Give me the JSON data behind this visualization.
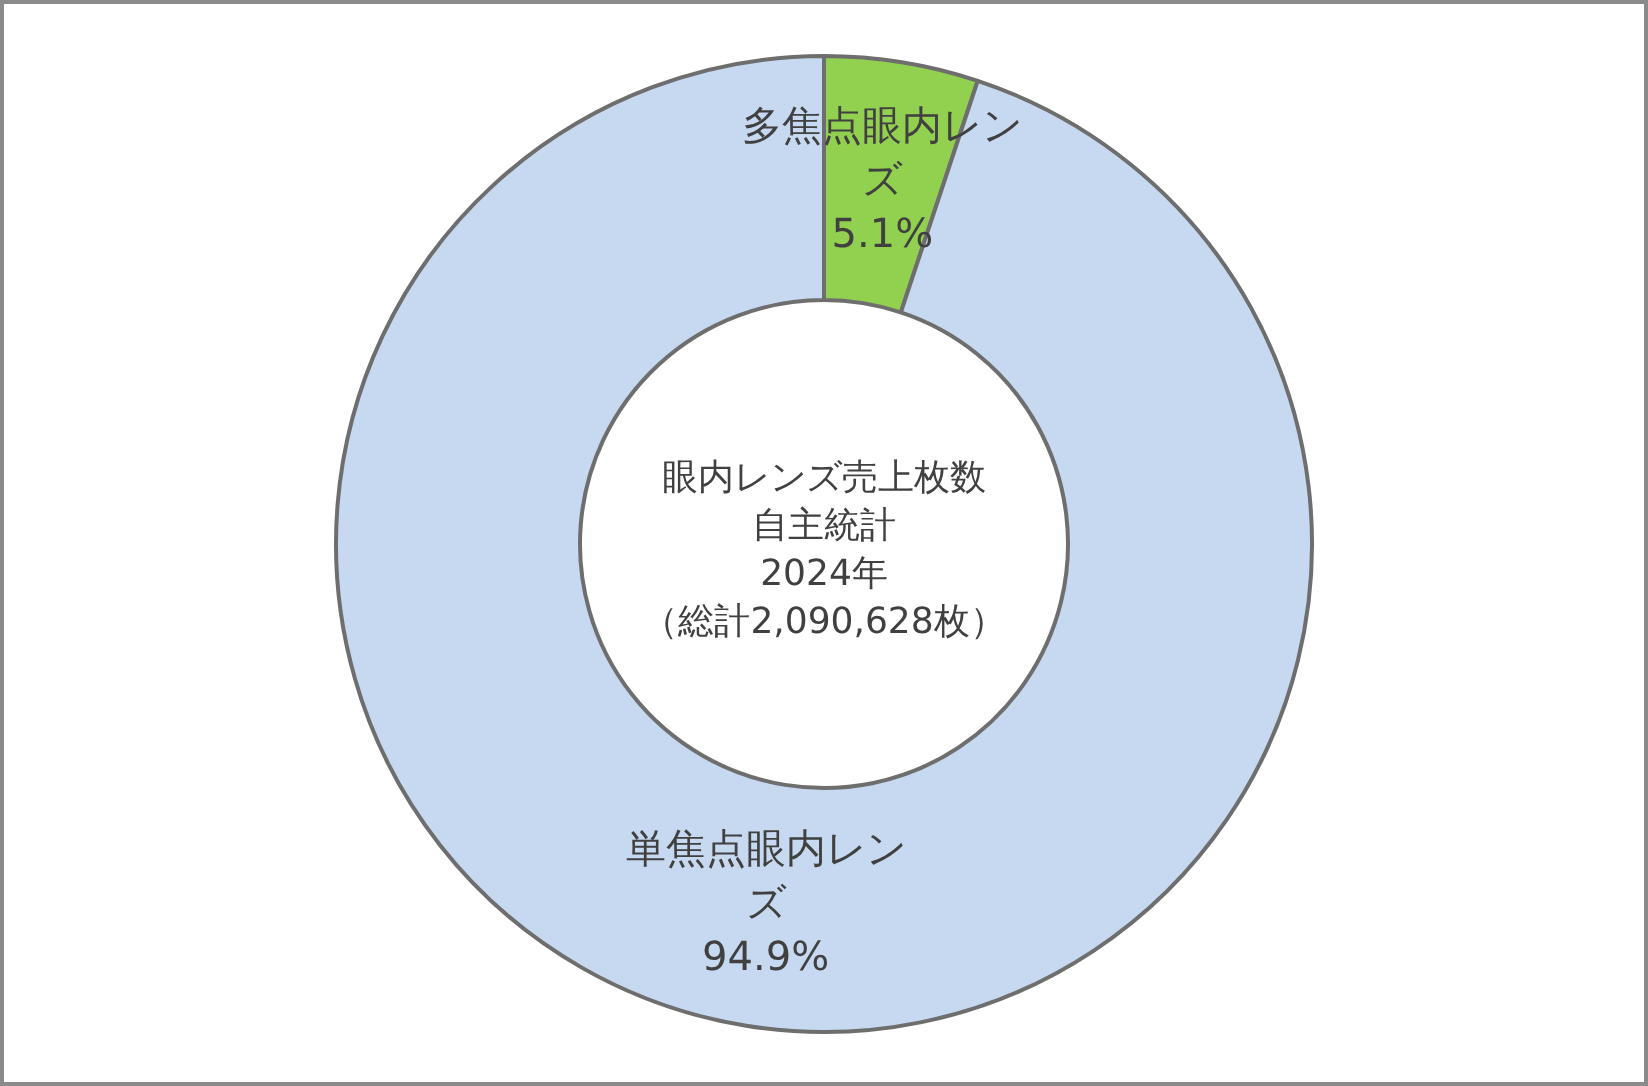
{
  "chart_data": {
    "type": "donut",
    "title": "眼内レンズ売上枚数自主統計",
    "subtitle": "2024年",
    "annotations": [
      "（総計2,090,628枚）"
    ],
    "categories": [
      "多焦点眼内レンズ",
      "単焦点眼内レンズ"
    ],
    "values": [
      5.1,
      94.9
    ],
    "colors": [
      "#92d050",
      "#c6d9f1"
    ],
    "value_labels": [
      "5.1%",
      "94.9%"
    ]
  }
}
